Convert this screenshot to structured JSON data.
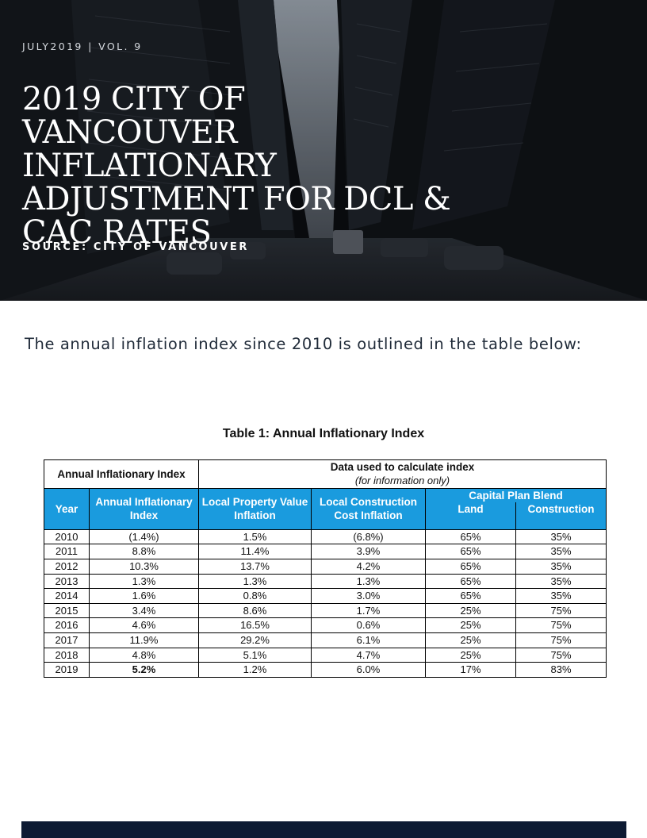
{
  "header": {
    "issue": "JULY2019 | VOL. 9",
    "title": "2019 CITY OF VANCOUVER INFLATIONARY ADJUSTMENT FOR DCL & CAC RATES",
    "source": "SOURCE: CITY OF VANCOUVER"
  },
  "intro": "The annual inflation index since 2010 is outlined in the table below:",
  "table": {
    "caption": "Table 1: Annual Inflationary Index",
    "group_header_left": "Annual Inflationary Index",
    "group_header_right": "Data used to calculate index",
    "group_header_right_note": "(for information only)",
    "capital_plan_blend": "Capital Plan Blend",
    "columns": {
      "year": "Year",
      "annual": "Annual Inflationary Index",
      "property": "Local Property Value Inflation",
      "construction_cost": "Local Construction Cost Inflation",
      "land": "Land",
      "construction": "Construction"
    },
    "col_year": [
      "2010",
      "2011",
      "2012",
      "2013",
      "2014",
      "2015",
      "2016",
      "2017",
      "2018",
      "2019"
    ],
    "col_annual": [
      "(1.4%)",
      "8.8%",
      "10.3%",
      "1.3%",
      "1.6%",
      "3.4%",
      "4.6%",
      "11.9%",
      "4.8%",
      "5.2%"
    ],
    "col_property": [
      "1.5%",
      "11.4%",
      "13.7%",
      "1.3%",
      "0.8%",
      "8.6%",
      "16.5%",
      "29.2%",
      "5.1%",
      "1.2%"
    ],
    "col_construction_cost": [
      "(6.8%)",
      "3.9%",
      "4.2%",
      "1.3%",
      "3.0%",
      "1.7%",
      "0.6%",
      "6.1%",
      "4.7%",
      "6.0%"
    ],
    "col_land": [
      "65%",
      "65%",
      "65%",
      "65%",
      "65%",
      "25%",
      "25%",
      "25%",
      "25%",
      "17%"
    ],
    "col_construction": [
      "35%",
      "35%",
      "35%",
      "35%",
      "35%",
      "75%",
      "75%",
      "75%",
      "75%",
      "83%"
    ]
  },
  "colors": {
    "hero_background": "#0a0c10",
    "table_header_blue": "#1a9bde",
    "footer_bar": "#0d1a33"
  }
}
